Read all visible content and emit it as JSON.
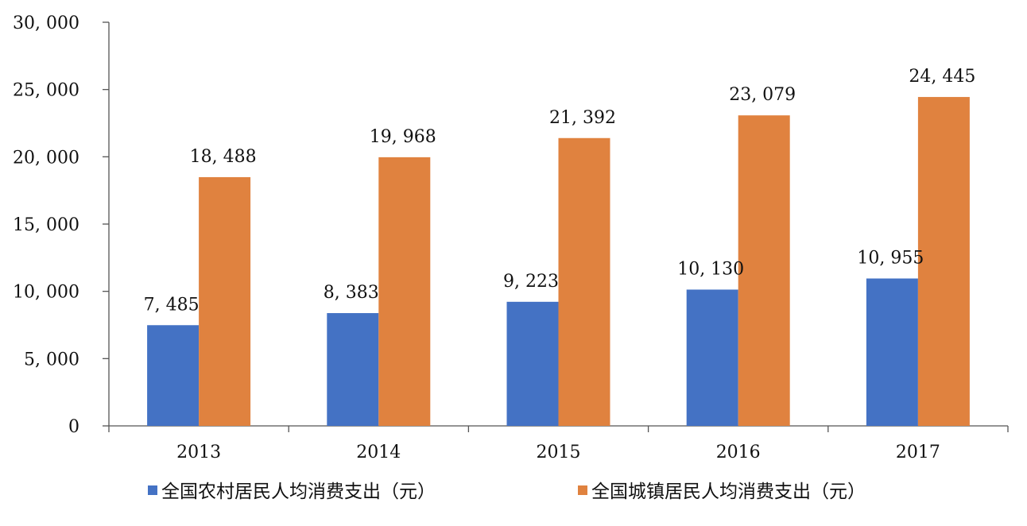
{
  "chart_data": {
    "type": "bar",
    "categories": [
      "2013",
      "2014",
      "2015",
      "2016",
      "2017"
    ],
    "series": [
      {
        "name": "全国农村居民人均消费支出（元）",
        "color": "#4472C4",
        "values": [
          7485,
          8383,
          9223,
          10130,
          10955
        ],
        "labels": [
          "7, 485",
          "8, 383",
          "9, 223",
          "10, 130",
          "10, 955"
        ]
      },
      {
        "name": "全国城镇居民人均消费支出（元）",
        "color": "#E0823F",
        "values": [
          18488,
          19968,
          21392,
          23079,
          24445
        ],
        "labels": [
          "18, 488",
          "19, 968",
          "21, 392",
          "23, 079",
          "24, 445"
        ]
      }
    ],
    "title": "",
    "xlabel": "",
    "ylabel": "",
    "ylim": [
      0,
      30000
    ],
    "yticks": [
      0,
      5000,
      10000,
      15000,
      20000,
      25000,
      30000
    ],
    "ytick_labels": [
      "0",
      "5, 000",
      "10, 000",
      "15, 000",
      "20, 000",
      "25, 000",
      "30, 000"
    ],
    "grid": false,
    "legend_position": "bottom"
  }
}
